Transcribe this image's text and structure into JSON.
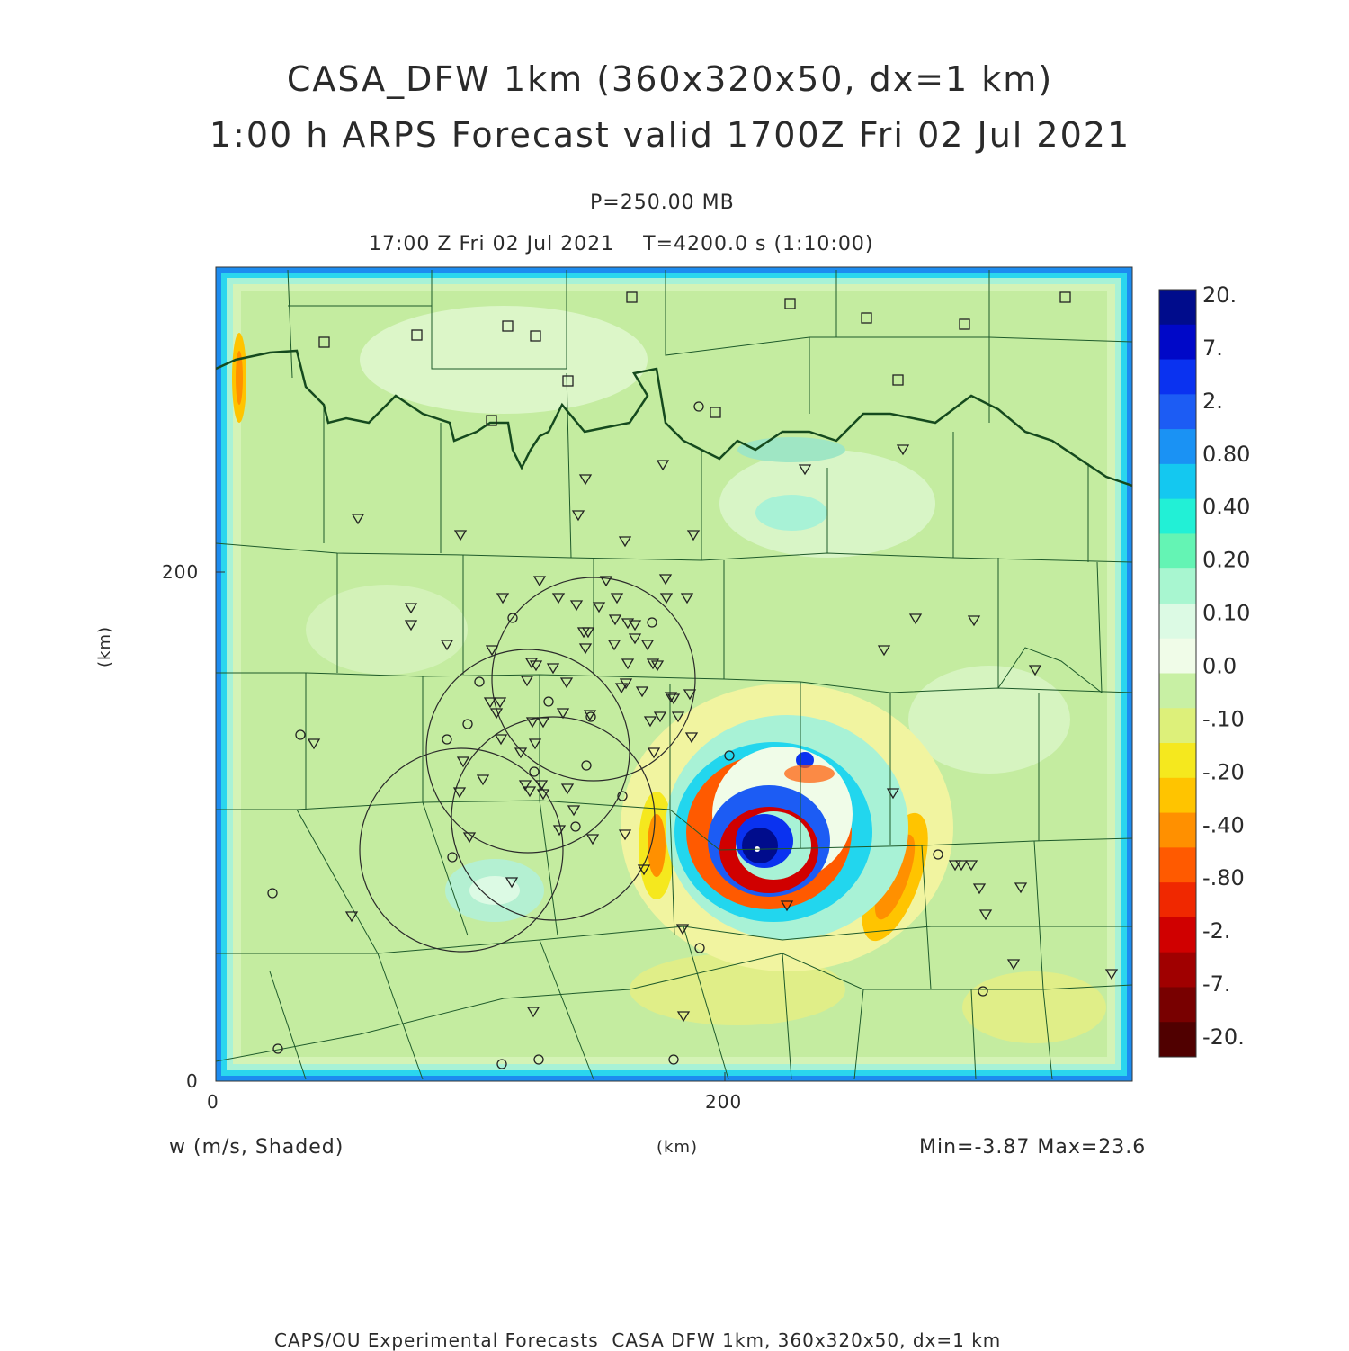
{
  "title": {
    "line1": "CASA_DFW 1km (360x320x50, dx=1 km)",
    "line2": "1:00 h ARPS Forecast valid 1700Z Fri 02 Jul 2021"
  },
  "header": {
    "pressure": "P=250.00 MB",
    "time": "17:00 Z Fri 02 Jul 2021    T=4200.0 s (1:10:00)"
  },
  "axes": {
    "x_ticks": [
      "0",
      "200"
    ],
    "y_ticks": [
      "0",
      "200"
    ],
    "x_unit": "(km)",
    "y_unit": "(km)"
  },
  "field": {
    "label": "w (m/s, Shaded)",
    "minmax": "Min=-3.87 Max=23.6"
  },
  "colorbar": {
    "labels": [
      "20.",
      "7.",
      "2.",
      "0.80",
      "0.40",
      "0.20",
      "0.10",
      "0.0",
      "-.10",
      "-.20",
      "-.40",
      "-.80",
      "-2.",
      "-7.",
      "-20."
    ],
    "colors": [
      "#000c8c",
      "#0008c8",
      "#0a32f0",
      "#1c5cf4",
      "#1a92f4",
      "#14c8f0",
      "#22f0d6",
      "#64f4b4",
      "#a8f6d0",
      "#dcfae4",
      "#f0fce8",
      "#c8f0a4",
      "#ddf07a",
      "#f5e81e",
      "#ffc400",
      "#ff9000",
      "#ff5a00",
      "#f02800",
      "#d00000",
      "#a00000",
      "#780000",
      "#500000"
    ]
  },
  "footer": "CAPS/OU Experimental Forecasts  CASA DFW 1km, 360x320x50, dx=1 km"
}
